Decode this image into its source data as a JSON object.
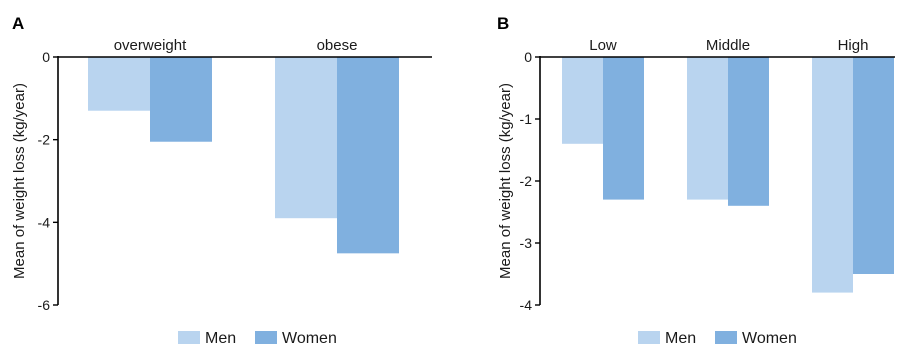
{
  "colors": {
    "men": "#b9d4ef",
    "women": "#80b0df",
    "axis": "#000000"
  },
  "chart_data": [
    {
      "panel": "A",
      "type": "bar",
      "categories": [
        "overweight",
        "obese"
      ],
      "series": [
        {
          "name": "Men",
          "values": [
            -1.3,
            -3.9
          ]
        },
        {
          "name": "Women",
          "values": [
            -2.05,
            -4.75
          ]
        }
      ],
      "ylabel": "Mean of  weight loss (kg/year)",
      "ylim": [
        -6,
        0
      ],
      "yticks": [
        0,
        -2,
        -4,
        -6
      ],
      "category_labels_position": "top",
      "grid": false,
      "legend": "bottom-center"
    },
    {
      "panel": "B",
      "type": "bar",
      "categories": [
        "Low",
        "Middle",
        "High"
      ],
      "series": [
        {
          "name": "Men",
          "values": [
            -1.4,
            -2.3,
            -3.8
          ]
        },
        {
          "name": "Women",
          "values": [
            -2.3,
            -2.4,
            -3.5
          ]
        }
      ],
      "ylabel": "Mean of weight loss (kg/year)",
      "ylim": [
        -4,
        0
      ],
      "yticks": [
        0,
        -1,
        -2,
        -3,
        -4
      ],
      "category_labels_position": "top",
      "grid": false,
      "legend": "bottom-center"
    }
  ]
}
